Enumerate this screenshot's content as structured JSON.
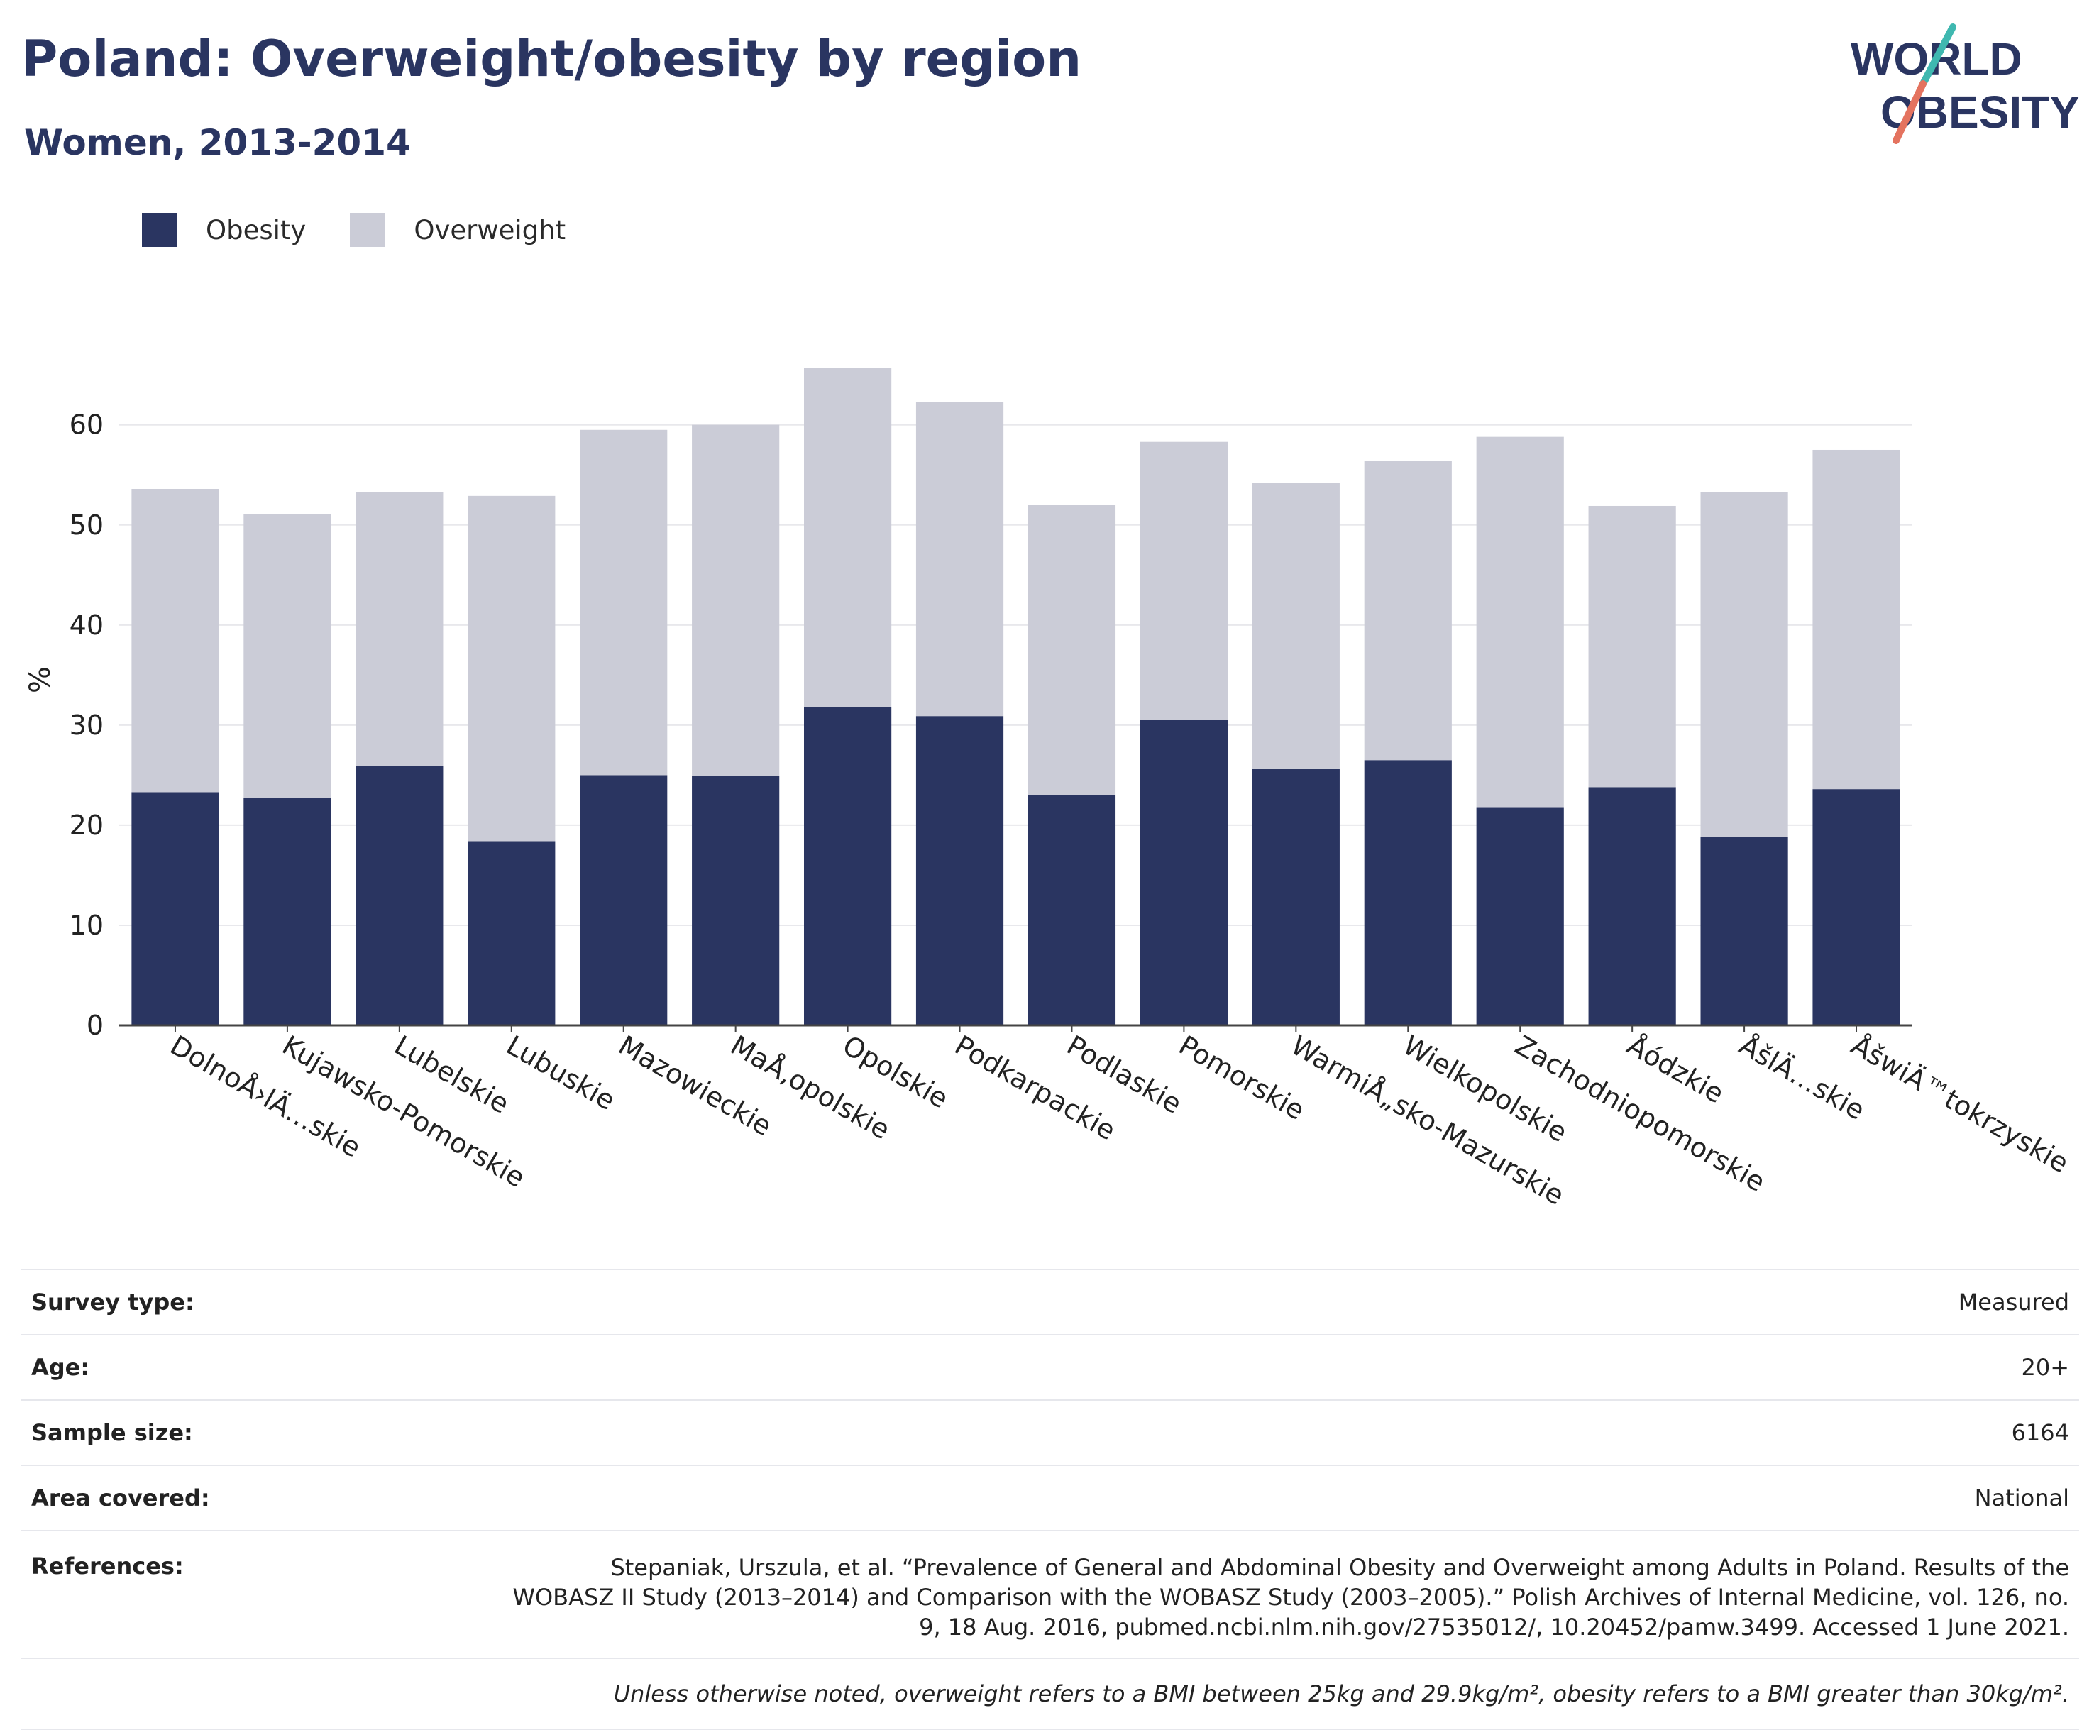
{
  "header": {
    "title": "Poland: Overweight/obesity by region",
    "subtitle": "Women, 2013-2014"
  },
  "logo": {
    "line1": "WORLD",
    "line2": "OBESITY"
  },
  "colors": {
    "obesity": "#2a3561",
    "overweight": "#cbccd7",
    "text": "#2a3561",
    "logo_teal": "#3fb8b0",
    "logo_coral": "#e4735f"
  },
  "legend": {
    "obesity": "Obesity",
    "overweight": "Overweight"
  },
  "chart_data": {
    "type": "bar",
    "stacked": true,
    "categories": [
      "DolnoÅ›lÄ…skie",
      "Kujawsko-Pomorskie",
      "Lubelskie",
      "Lubuskie",
      "Mazowieckie",
      "MaÅ‚opolskie",
      "Opolskie",
      "Podkarpackie",
      "Podlaskie",
      "Pomorskie",
      "WarmiÅ„sko-Mazurskie",
      "Wielkopolskie",
      "Zachodniopomorskie",
      "Åódzkie",
      "ÅšlÄ…skie",
      "ÅšwiÄ™tokrzyskie"
    ],
    "series": [
      {
        "name": "Obesity",
        "values": [
          23.3,
          22.7,
          25.9,
          18.4,
          25.0,
          24.9,
          31.8,
          30.9,
          23.0,
          30.5,
          25.6,
          26.5,
          21.8,
          23.8,
          18.8,
          23.6
        ]
      },
      {
        "name": "Overweight",
        "values": [
          30.3,
          28.4,
          27.4,
          34.5,
          34.5,
          35.1,
          33.9,
          31.4,
          29.0,
          27.8,
          28.6,
          29.9,
          37.0,
          28.1,
          34.5,
          33.9
        ]
      }
    ],
    "ylabel": "%",
    "ylim": [
      0,
      67
    ],
    "yticks": [
      0,
      10,
      20,
      30,
      40,
      50,
      60
    ],
    "grid": true,
    "legend_position": "top-left"
  },
  "info": [
    {
      "label": "Survey type:",
      "value": "Measured"
    },
    {
      "label": "Age:",
      "value": "20+"
    },
    {
      "label": "Sample size:",
      "value": "6164"
    },
    {
      "label": "Area covered:",
      "value": "National"
    }
  ],
  "references": {
    "label": "References:",
    "value": "Stepaniak, Urszula, et al. “Prevalence of General and Abdominal Obesity and Overweight among Adults in Poland. Results of the WOBASZ II Study (2013–2014) and Comparison with the WOBASZ Study (2003–2005).” Polish Archives of Internal Medicine, vol. 126, no. 9, 18 Aug. 2016, pubmed.ncbi.nlm.nih.gov/27535012/, 10.20452/pamw.3499. Accessed 1 June 2021."
  },
  "note": "Unless otherwise noted, overweight refers to a BMI between 25kg and 29.9kg/m², obesity refers to a BMI greater than 30kg/m²."
}
